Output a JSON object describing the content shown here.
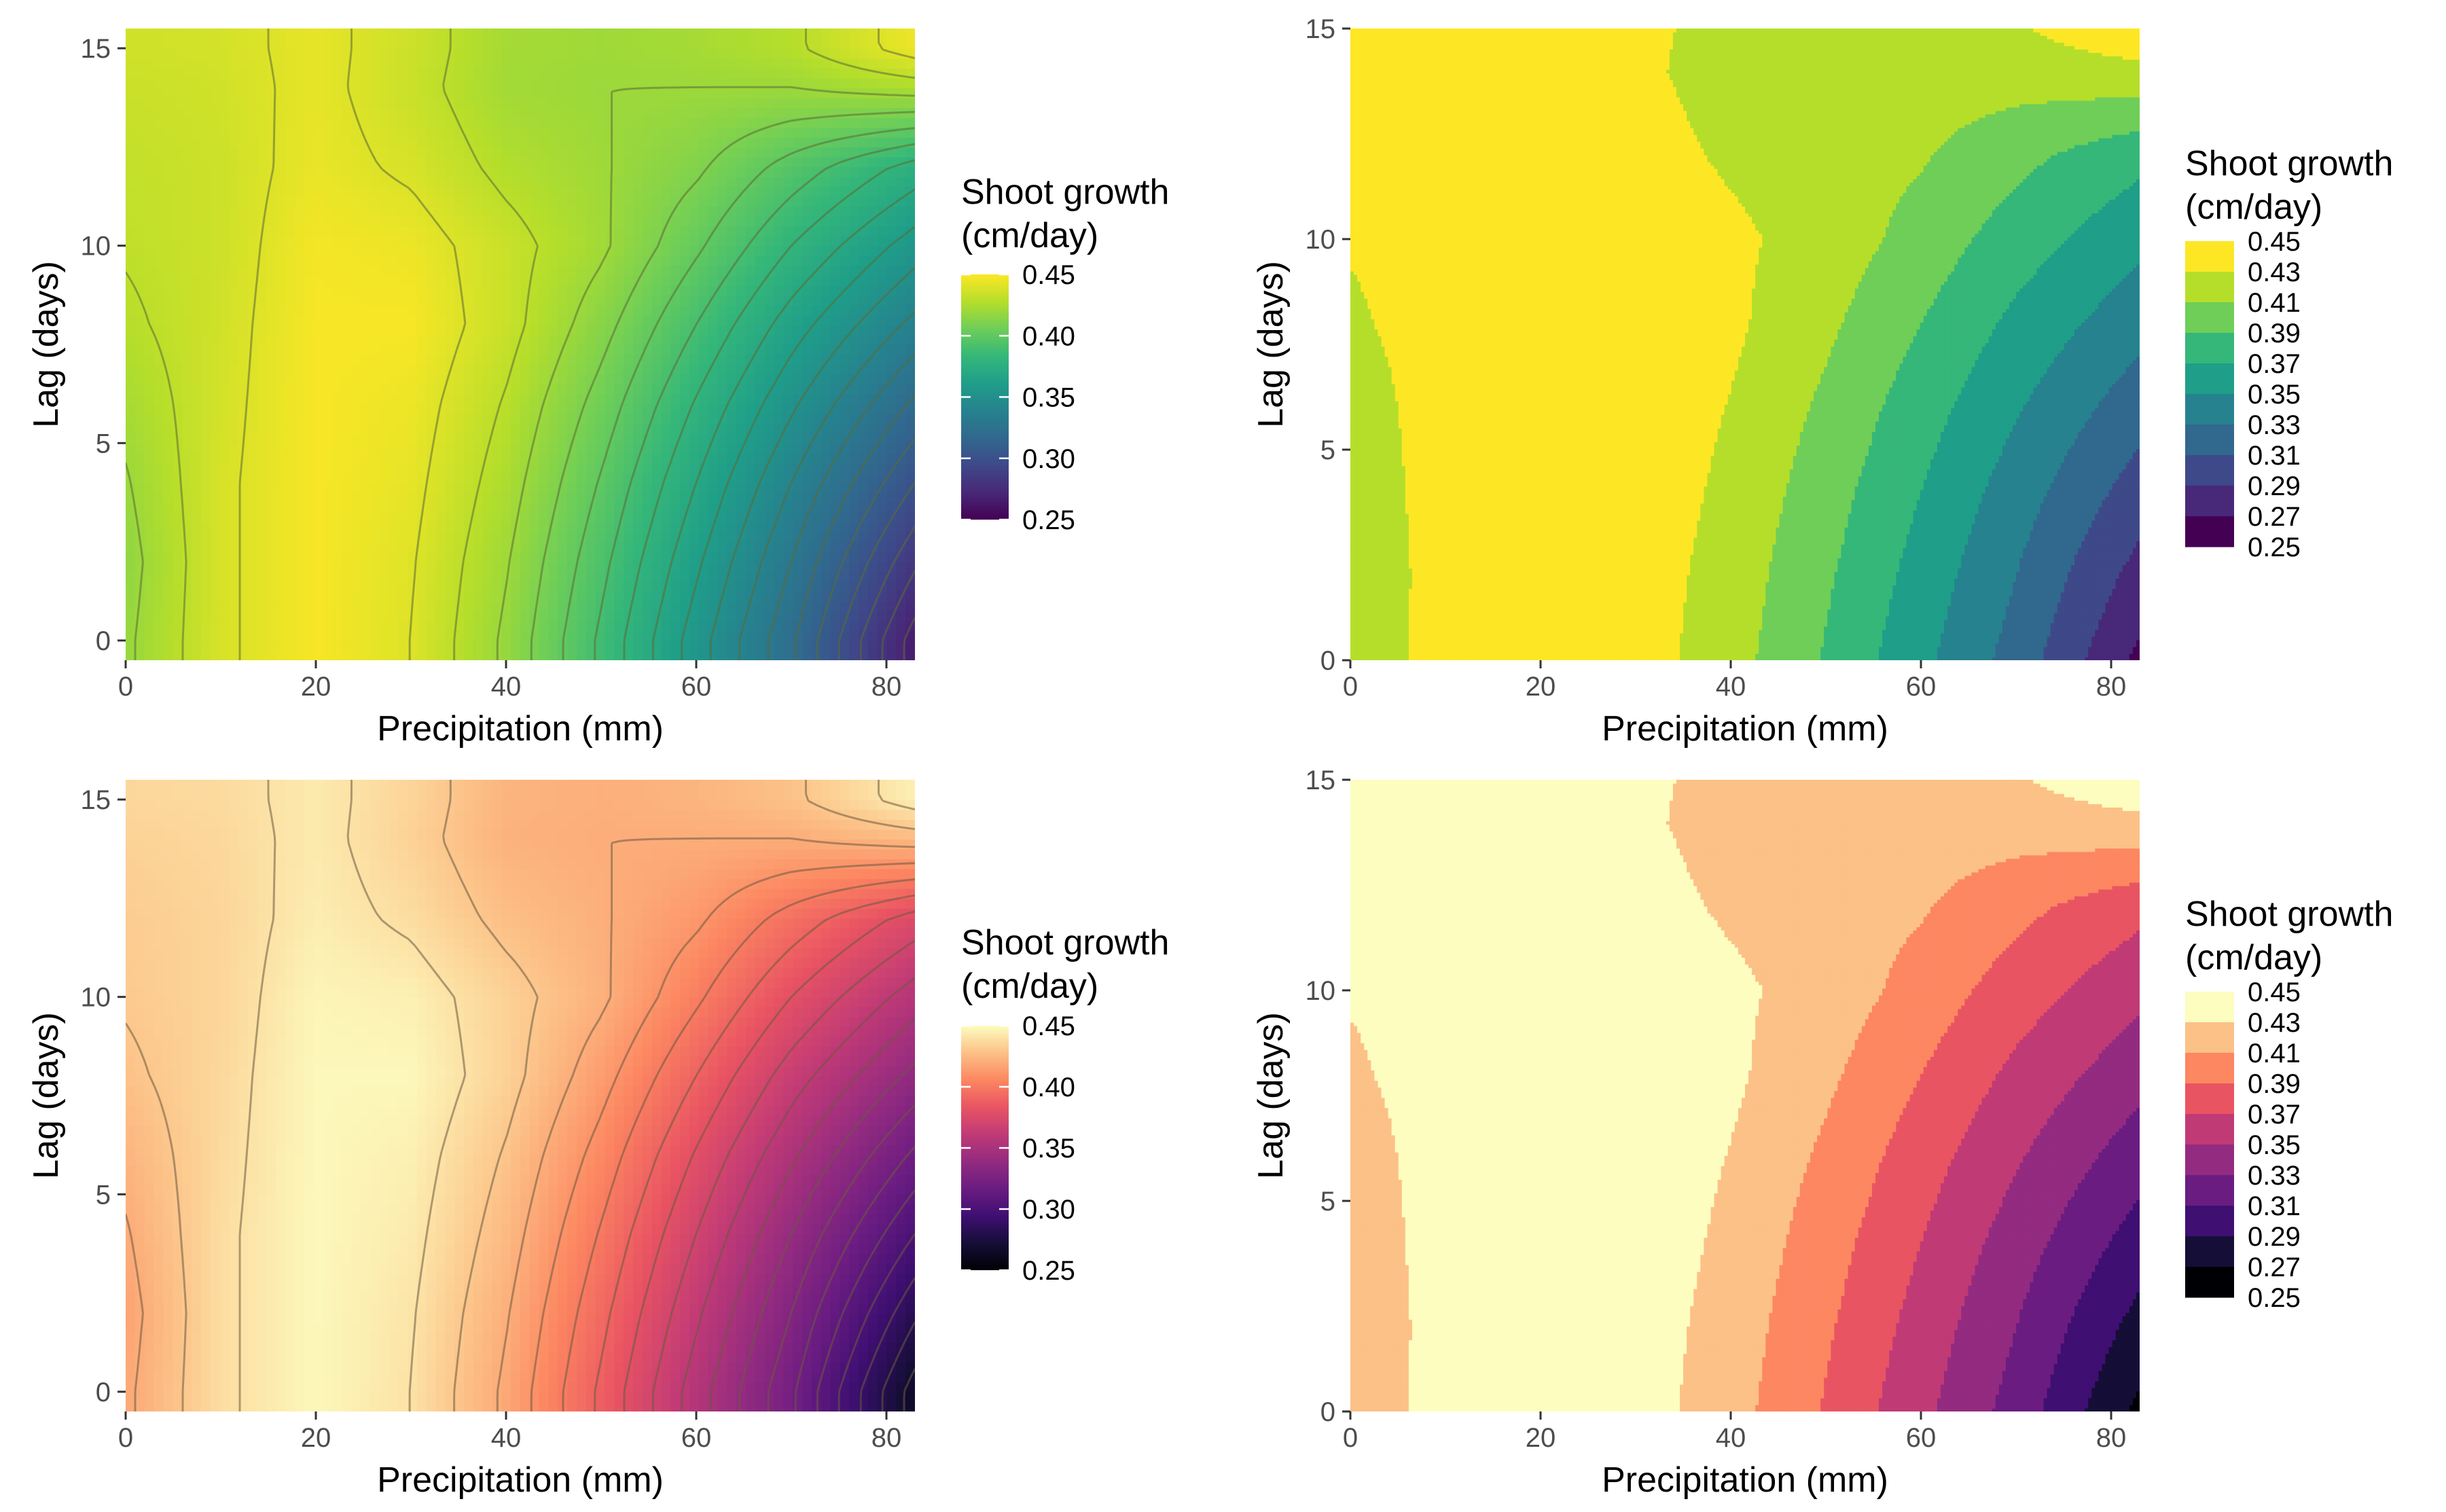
{
  "chart_data": [
    {
      "type": "heatmap",
      "style": "continuous raster with contour lines",
      "palette": "viridis",
      "xlabel": "Precipitation (mm)",
      "ylabel": "Lag (days)",
      "xlim": [
        0,
        83
      ],
      "ylim": [
        -0.5,
        15.5
      ],
      "x_ticks": [
        0,
        20,
        40,
        60,
        80
      ],
      "x_tick_labels": [
        "0",
        "20",
        "40",
        "60",
        "80"
      ],
      "y_ticks": [
        0,
        5,
        10,
        15
      ],
      "y_tick_labels": [
        "0",
        "5",
        "10",
        "15"
      ],
      "x_grid": [
        0,
        10,
        20,
        30,
        40,
        50,
        60,
        70,
        83
      ],
      "y_grid": [
        0,
        2,
        4,
        6,
        8,
        10,
        12,
        14,
        15
      ],
      "z": [
        [
          0.418,
          0.438,
          0.448,
          0.44,
          0.418,
          0.388,
          0.355,
          0.322,
          0.265
        ],
        [
          0.416,
          0.438,
          0.448,
          0.441,
          0.421,
          0.393,
          0.362,
          0.33,
          0.282
        ],
        [
          0.419,
          0.438,
          0.448,
          0.443,
          0.425,
          0.399,
          0.37,
          0.34,
          0.3
        ],
        [
          0.423,
          0.437,
          0.448,
          0.445,
          0.429,
          0.406,
          0.379,
          0.352,
          0.318
        ],
        [
          0.428,
          0.436,
          0.448,
          0.448,
          0.434,
          0.414,
          0.39,
          0.365,
          0.337
        ],
        [
          0.431,
          0.435,
          0.447,
          0.445,
          0.434,
          0.422,
          0.402,
          0.38,
          0.355
        ],
        [
          0.432,
          0.435,
          0.444,
          0.438,
          0.427,
          0.421,
          0.412,
          0.396,
          0.376
        ],
        [
          0.434,
          0.436,
          0.443,
          0.434,
          0.422,
          0.42,
          0.42,
          0.42,
          0.425
        ],
        [
          0.436,
          0.437,
          0.443,
          0.435,
          0.423,
          0.421,
          0.423,
          0.428,
          0.445
        ]
      ],
      "legend": {
        "title": [
          "Shoot growth",
          "(cm/day)"
        ],
        "type": "colorbar",
        "breaks": [
          0.45,
          0.4,
          0.35,
          0.3,
          0.25
        ],
        "labels": [
          "0.45",
          "0.40",
          "0.35",
          "0.30",
          "0.25"
        ],
        "limits": [
          0.25,
          0.45
        ],
        "placement": "right"
      }
    },
    {
      "type": "heatmap",
      "style": "filled contours",
      "palette": "viridis",
      "xlabel": "Precipitation (mm)",
      "ylabel": "Lag (days)",
      "xlim": [
        0,
        83
      ],
      "ylim": [
        0,
        15
      ],
      "x_ticks": [
        0,
        20,
        40,
        60,
        80
      ],
      "x_tick_labels": [
        "0",
        "20",
        "40",
        "60",
        "80"
      ],
      "y_ticks": [
        0,
        5,
        10,
        15
      ],
      "y_tick_labels": [
        "0",
        "5",
        "10",
        "15"
      ],
      "levels": [
        0.25,
        0.27,
        0.29,
        0.31,
        0.33,
        0.35,
        0.37,
        0.39,
        0.41,
        0.43,
        0.45
      ],
      "legend": {
        "title": [
          "Shoot growth",
          "(cm/day)"
        ],
        "type": "discrete",
        "labels": [
          "0.45",
          "0.43",
          "0.41",
          "0.39",
          "0.37",
          "0.35",
          "0.33",
          "0.31",
          "0.29",
          "0.27",
          "0.25"
        ],
        "colors": [
          "#fde725",
          "#b5de2b",
          "#6ece58",
          "#35b779",
          "#1f9e89",
          "#26828e",
          "#31688e",
          "#3e4989",
          "#482878",
          "#440154"
        ],
        "placement": "right"
      }
    },
    {
      "type": "heatmap",
      "style": "continuous raster with contour lines",
      "palette": "magma",
      "xlabel": "Precipitation (mm)",
      "ylabel": "Lag (days)",
      "xlim": [
        0,
        83
      ],
      "ylim": [
        -0.5,
        15.5
      ],
      "x_ticks": [
        0,
        20,
        40,
        60,
        80
      ],
      "x_tick_labels": [
        "0",
        "20",
        "40",
        "60",
        "80"
      ],
      "y_ticks": [
        0,
        5,
        10,
        15
      ],
      "y_tick_labels": [
        "0",
        "5",
        "10",
        "15"
      ],
      "same_z_as_panel": 1,
      "legend": {
        "title": [
          "Shoot growth",
          "(cm/day)"
        ],
        "type": "colorbar",
        "breaks": [
          0.45,
          0.4,
          0.35,
          0.3,
          0.25
        ],
        "labels": [
          "0.45",
          "0.40",
          "0.35",
          "0.30",
          "0.25"
        ],
        "limits": [
          0.25,
          0.45
        ],
        "placement": "right"
      }
    },
    {
      "type": "heatmap",
      "style": "filled contours",
      "palette": "magma",
      "xlabel": "Precipitation (mm)",
      "ylabel": "Lag (days)",
      "xlim": [
        0,
        83
      ],
      "ylim": [
        0,
        15
      ],
      "x_ticks": [
        0,
        20,
        40,
        60,
        80
      ],
      "x_tick_labels": [
        "0",
        "20",
        "40",
        "60",
        "80"
      ],
      "y_ticks": [
        0,
        5,
        10,
        15
      ],
      "y_tick_labels": [
        "0",
        "5",
        "10",
        "15"
      ],
      "levels": [
        0.25,
        0.27,
        0.29,
        0.31,
        0.33,
        0.35,
        0.37,
        0.39,
        0.41,
        0.43,
        0.45
      ],
      "legend": {
        "title": [
          "Shoot growth",
          "(cm/day)"
        ],
        "type": "discrete",
        "labels": [
          "0.45",
          "0.43",
          "0.41",
          "0.39",
          "0.37",
          "0.35",
          "0.33",
          "0.31",
          "0.29",
          "0.27",
          "0.25"
        ],
        "colors": [
          "#fcfdbf",
          "#fcc187",
          "#fc8761",
          "#e95462",
          "#c03a76",
          "#932b80",
          "#6a1c81",
          "#3f0f72",
          "#150e37",
          "#000004"
        ],
        "placement": "right"
      }
    }
  ]
}
